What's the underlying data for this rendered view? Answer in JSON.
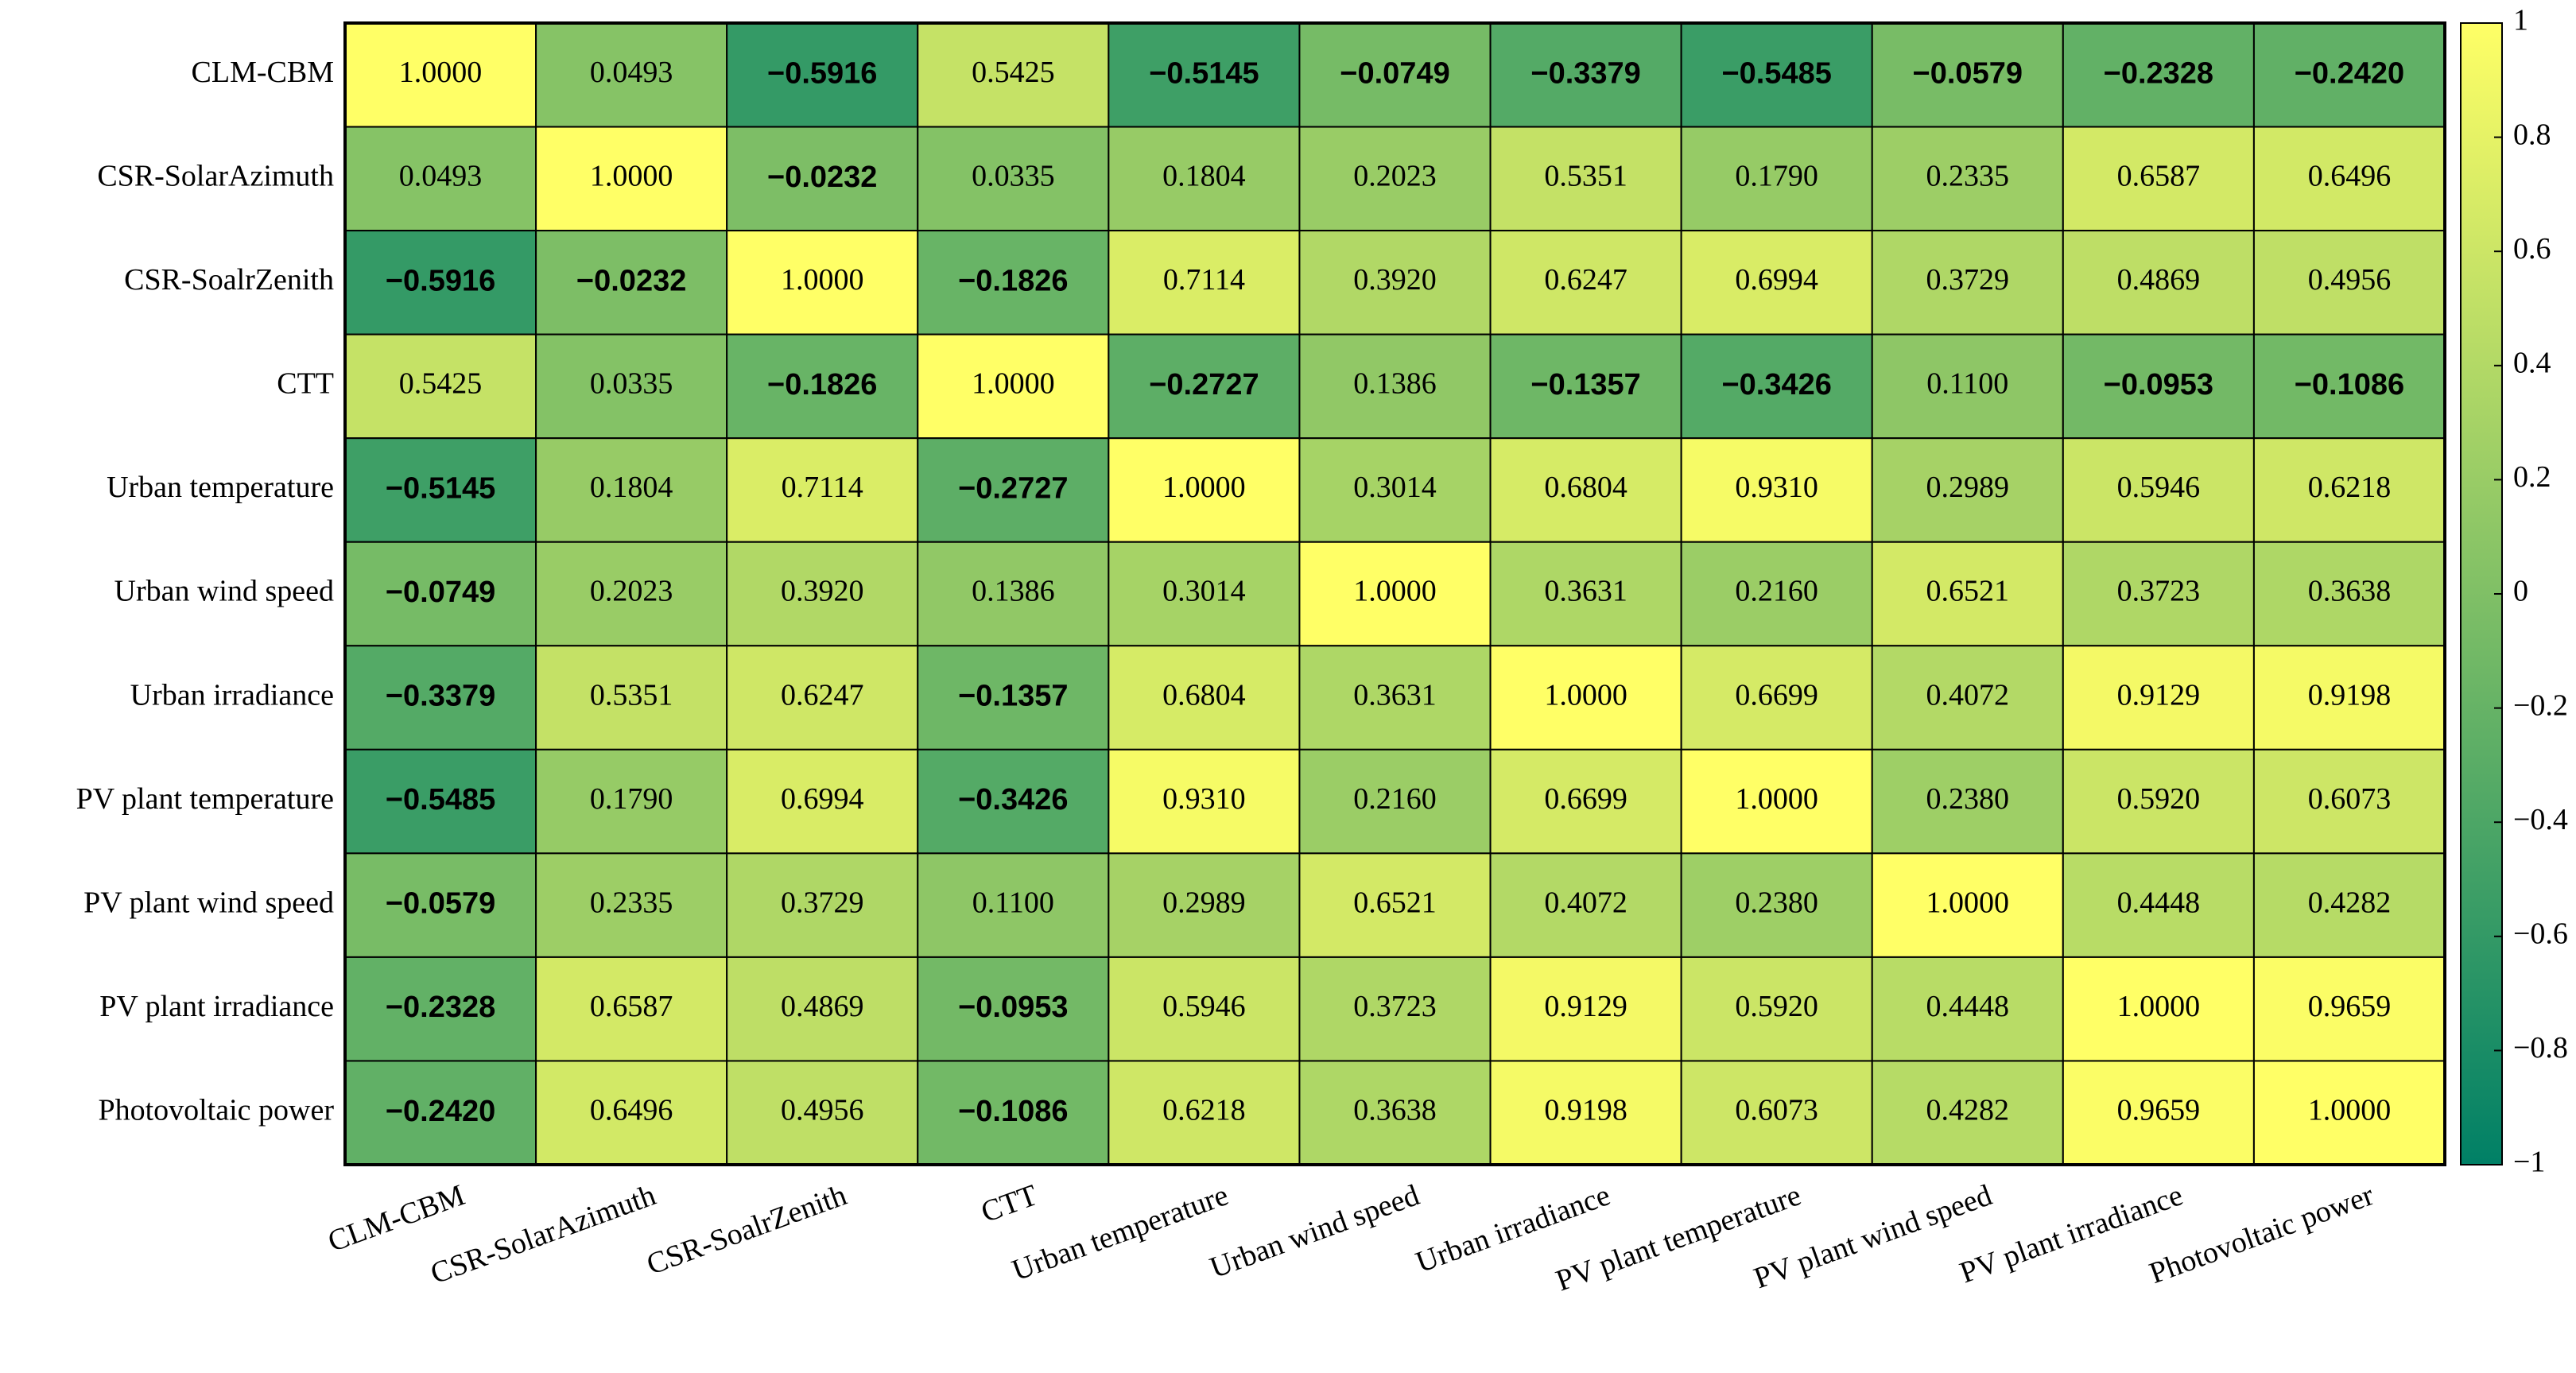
{
  "chart_data": {
    "type": "heatmap",
    "categories": [
      "CLM-CBM",
      "CSR-SolarAzimuth",
      "CSR-SoalrZenith",
      "CTT",
      "Urban temperature",
      "Urban wind speed",
      "Urban irradiance",
      "PV plant temperature",
      "PV plant wind speed",
      "PV plant irradiance",
      "Photovoltaic power"
    ],
    "values": [
      [
        1.0,
        0.0493,
        -0.5916,
        0.5425,
        -0.5145,
        -0.0749,
        -0.3379,
        -0.5485,
        -0.0579,
        -0.2328,
        -0.242
      ],
      [
        0.0493,
        1.0,
        -0.0232,
        0.0335,
        0.1804,
        0.2023,
        0.5351,
        0.179,
        0.2335,
        0.6587,
        0.6496
      ],
      [
        -0.5916,
        -0.0232,
        1.0,
        -0.1826,
        0.7114,
        0.392,
        0.6247,
        0.6994,
        0.3729,
        0.4869,
        0.4956
      ],
      [
        0.5425,
        0.0335,
        -0.1826,
        1.0,
        -0.2727,
        0.1386,
        -0.1357,
        -0.3426,
        0.11,
        -0.0953,
        -0.1086
      ],
      [
        -0.5145,
        0.1804,
        0.7114,
        -0.2727,
        1.0,
        0.3014,
        0.6804,
        0.931,
        0.2989,
        0.5946,
        0.6218
      ],
      [
        -0.0749,
        0.2023,
        0.392,
        0.1386,
        0.3014,
        1.0,
        0.3631,
        0.216,
        0.6521,
        0.3723,
        0.3638
      ],
      [
        -0.3379,
        0.5351,
        0.6247,
        -0.1357,
        0.6804,
        0.3631,
        1.0,
        0.6699,
        0.4072,
        0.9129,
        0.9198
      ],
      [
        -0.5485,
        0.179,
        0.6994,
        -0.3426,
        0.931,
        0.216,
        0.6699,
        1.0,
        0.238,
        0.592,
        0.6073
      ],
      [
        -0.0579,
        0.2335,
        0.3729,
        0.11,
        0.2989,
        0.6521,
        0.4072,
        0.238,
        1.0,
        0.4448,
        0.4282
      ],
      [
        -0.2328,
        0.6587,
        0.4869,
        -0.0953,
        0.5946,
        0.3723,
        0.9129,
        0.592,
        0.4448,
        1.0,
        0.9659
      ],
      [
        -0.242,
        0.6496,
        0.4956,
        -0.1086,
        0.6218,
        0.3638,
        0.9198,
        0.6073,
        0.4282,
        0.9659,
        1.0
      ]
    ],
    "value_labels": [
      [
        "1.0000",
        "0.0493",
        "−0.5916",
        "0.5425",
        "−0.5145",
        "−0.0749",
        "−0.3379",
        "−0.5485",
        "−0.0579",
        "−0.2328",
        "−0.2420"
      ],
      [
        "0.0493",
        "1.0000",
        "−0.0232",
        "0.0335",
        "0.1804",
        "0.2023",
        "0.5351",
        "0.1790",
        "0.2335",
        "0.6587",
        "0.6496"
      ],
      [
        "−0.5916",
        "−0.0232",
        "1.0000",
        "−0.1826",
        "0.7114",
        "0.3920",
        "0.6247",
        "0.6994",
        "0.3729",
        "0.4869",
        "0.4956"
      ],
      [
        "0.5425",
        "0.0335",
        "−0.1826",
        "1.0000",
        "−0.2727",
        "0.1386",
        "−0.1357",
        "−0.3426",
        "0.1100",
        "−0.0953",
        "−0.1086"
      ],
      [
        "−0.5145",
        "0.1804",
        "0.7114",
        "−0.2727",
        "1.0000",
        "0.3014",
        "0.6804",
        "0.9310",
        "0.2989",
        "0.5946",
        "0.6218"
      ],
      [
        "−0.0749",
        "0.2023",
        "0.3920",
        "0.1386",
        "0.3014",
        "1.0000",
        "0.3631",
        "0.2160",
        "0.6521",
        "0.3723",
        "0.3638"
      ],
      [
        "−0.3379",
        "0.5351",
        "0.6247",
        "−0.1357",
        "0.6804",
        "0.3631",
        "1.0000",
        "0.6699",
        "0.4072",
        "0.9129",
        "0.9198"
      ],
      [
        "−0.5485",
        "0.1790",
        "0.6994",
        "−0.3426",
        "0.9310",
        "0.2160",
        "0.6699",
        "1.0000",
        "0.2380",
        "0.5920",
        "0.6073"
      ],
      [
        "−0.0579",
        "0.2335",
        "0.3729",
        "0.1100",
        "0.2989",
        "0.6521",
        "0.4072",
        "0.2380",
        "1.0000",
        "0.4448",
        "0.4282"
      ],
      [
        "−0.2328",
        "0.6587",
        "0.4869",
        "−0.0953",
        "0.5946",
        "0.3723",
        "0.9129",
        "0.5920",
        "0.4448",
        "1.0000",
        "0.9659"
      ],
      [
        "−0.2420",
        "0.6496",
        "0.4956",
        "−0.1086",
        "0.6218",
        "0.3638",
        "0.9198",
        "0.6073",
        "0.4282",
        "0.9659",
        "1.0000"
      ]
    ],
    "colormap": [
      "#008066",
      "#ffff66"
    ],
    "clim": [
      -1,
      1
    ],
    "cticks": [
      {
        "value": -1,
        "label": "−1"
      },
      {
        "value": -0.8,
        "label": "−0.8"
      },
      {
        "value": -0.6,
        "label": "−0.6"
      },
      {
        "value": -0.4,
        "label": "−0.4"
      },
      {
        "value": -0.2,
        "label": "−0.2"
      },
      0,
      0.2,
      0.4,
      0.6,
      0.8,
      1
    ]
  }
}
